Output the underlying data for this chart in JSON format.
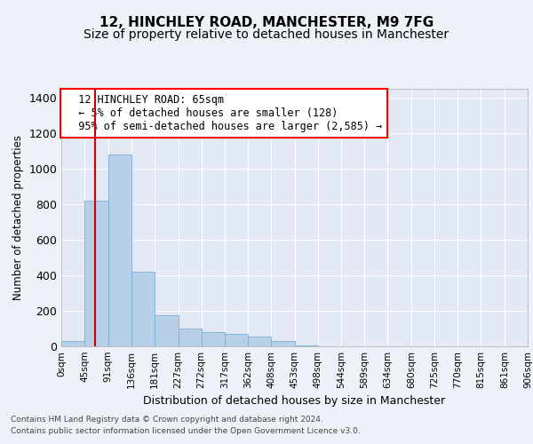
{
  "title1": "12, HINCHLEY ROAD, MANCHESTER, M9 7FG",
  "title2": "Size of property relative to detached houses in Manchester",
  "xlabel": "Distribution of detached houses by size in Manchester",
  "ylabel": "Number of detached properties",
  "bin_edges": [
    0,
    45,
    91,
    136,
    181,
    227,
    272,
    317,
    362,
    408,
    453,
    498,
    544,
    589,
    634,
    680,
    725,
    770,
    815,
    861,
    906
  ],
  "bin_counts": [
    30,
    820,
    1080,
    420,
    175,
    100,
    80,
    70,
    55,
    30,
    5,
    2,
    1,
    0,
    0,
    0,
    0,
    0,
    0,
    0
  ],
  "bar_color": "#b8cfe8",
  "bar_edge_color": "#7aafd4",
  "property_size": 65,
  "annotation_text": "  12 HINCHLEY ROAD: 65sqm\n  ← 5% of detached houses are smaller (128)\n  95% of semi-detached houses are larger (2,585) →",
  "vline_x": 65,
  "vline_color": "#cc0000",
  "ylim": [
    0,
    1450
  ],
  "yticks": [
    0,
    200,
    400,
    600,
    800,
    1000,
    1200,
    1400
  ],
  "footer1": "Contains HM Land Registry data © Crown copyright and database right 2024.",
  "footer2": "Contains public sector information licensed under the Open Government Licence v3.0.",
  "bg_color": "#eef2f8",
  "plot_bg_color": "#e2e8f4",
  "grid_color": "#ffffff",
  "title_fontsize": 11,
  "subtitle_fontsize": 10,
  "tick_labels": [
    "0sqm",
    "45sqm",
    "91sqm",
    "136sqm",
    "181sqm",
    "227sqm",
    "272sqm",
    "317sqm",
    "362sqm",
    "408sqm",
    "453sqm",
    "498sqm",
    "544sqm",
    "589sqm",
    "634sqm",
    "680sqm",
    "725sqm",
    "770sqm",
    "815sqm",
    "861sqm",
    "906sqm"
  ]
}
